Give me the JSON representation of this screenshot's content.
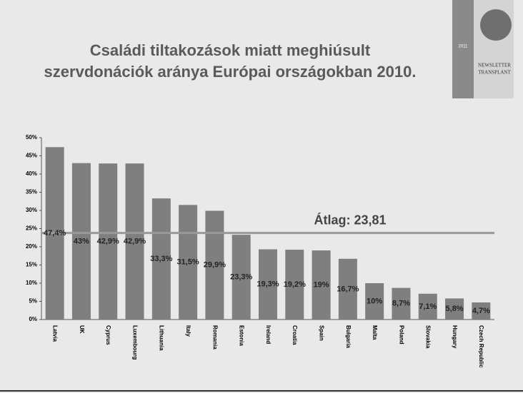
{
  "chart_data": {
    "type": "bar",
    "title": [
      "Családi tiltakozások miatt meghiúsult",
      "szervdonációk aránya Európai országokban 2010."
    ],
    "logo": {
      "year": "2011",
      "name": [
        "NEWSLETTER",
        "TRANSPLANT"
      ]
    },
    "categories": [
      "Latvia",
      "UK",
      "Cyprus",
      "Luxembourg",
      "Lithuania",
      "Italy",
      "Romania",
      "Estonia",
      "Ireland",
      "Croatia",
      "Spain",
      "Bulgaria",
      "Malta",
      "Poland",
      "Slovakia",
      "Hungary",
      "Czech Republic"
    ],
    "values": [
      47.4,
      43,
      42.9,
      42.9,
      33.3,
      31.5,
      29.9,
      23.3,
      19.3,
      19.2,
      19,
      16.7,
      10,
      8.7,
      7.1,
      5.8,
      4.7
    ],
    "value_labels": [
      "47,4%",
      "43%",
      "42,9%",
      "42,9%",
      "33,3%",
      "31,5%",
      "29,9%",
      "23,3%",
      "19,3%",
      "19,2%",
      "19%",
      "16,7%",
      "10%",
      "8,7%",
      "7,1%",
      "5,8%",
      "4,7%"
    ],
    "color": "#7f7f7f",
    "average": {
      "value": 23.81,
      "label": "Átlag: 23,81",
      "color": "#999999"
    },
    "ylim": [
      0,
      50
    ],
    "yticks": [
      {
        "value": 0,
        "label": "0%"
      },
      {
        "value": 5,
        "label": "5%"
      },
      {
        "value": 10,
        "label": "10%"
      },
      {
        "value": 15,
        "label": "15%"
      },
      {
        "value": 20,
        "label": "20%"
      },
      {
        "value": 25,
        "label": "25%"
      },
      {
        "value": 30,
        "label": "30%"
      },
      {
        "value": 35,
        "label": "35%"
      },
      {
        "value": 40,
        "label": "40%"
      },
      {
        "value": 45,
        "label": "45%"
      },
      {
        "value": 50,
        "label": "50%"
      }
    ],
    "grid": false
  }
}
